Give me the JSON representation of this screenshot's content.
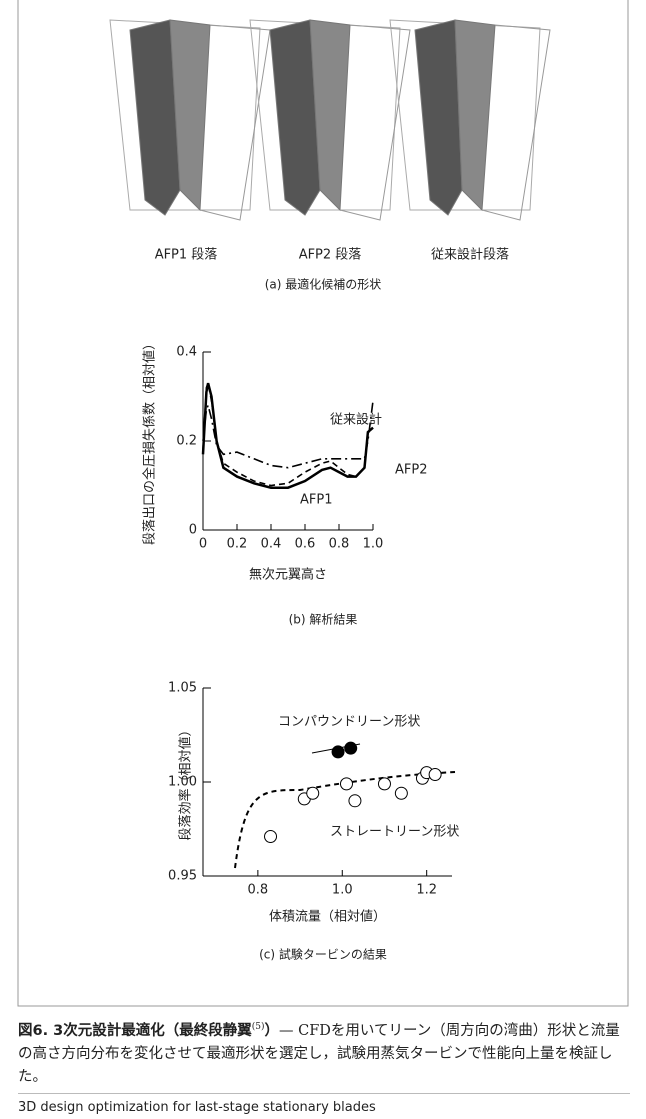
{
  "panel_a": {
    "labels": [
      "AFP1 段落",
      "AFP2 段落",
      "従来設計段落"
    ],
    "caption": "(a) 最適化候補の形状"
  },
  "chart_data": [
    {
      "type": "line",
      "ylabel": "段落出口の全圧損失係数（相対値）",
      "xlabel": "無次元翼高さ",
      "caption": "(b) 解析結果",
      "x": [
        0,
        0.02,
        0.03,
        0.05,
        0.08,
        0.12,
        0.2,
        0.3,
        0.4,
        0.5,
        0.6,
        0.7,
        0.75,
        0.8,
        0.85,
        0.9,
        0.95,
        0.97,
        1.0
      ],
      "series": [
        {
          "name": "AFP1",
          "color": "#000000",
          "line_style": "solid",
          "values": [
            0.17,
            0.31,
            0.33,
            0.3,
            0.2,
            0.14,
            0.12,
            0.105,
            0.095,
            0.095,
            0.11,
            0.135,
            0.14,
            0.13,
            0.12,
            0.12,
            0.14,
            0.22,
            0.23
          ]
        },
        {
          "name": "AFP2",
          "color": "#000000",
          "line_style": "dashed",
          "values": [
            0.18,
            0.32,
            0.33,
            0.29,
            0.2,
            0.15,
            0.13,
            0.11,
            0.1,
            0.105,
            0.13,
            0.15,
            0.155,
            0.14,
            0.125,
            0.12,
            0.14,
            0.22,
            0.23
          ]
        },
        {
          "name": "従来設計",
          "color": "#000000",
          "line_style": "dashdot",
          "values": [
            0.2,
            0.27,
            0.28,
            0.25,
            0.19,
            0.17,
            0.175,
            0.16,
            0.145,
            0.14,
            0.15,
            0.16,
            0.16,
            0.16,
            0.16,
            0.16,
            0.16,
            0.2,
            0.29
          ]
        }
      ],
      "xlim": [
        0,
        1
      ],
      "xticks": [
        0,
        0.2,
        0.4,
        0.6,
        0.8,
        {
          "value": 1,
          "label": "1.0"
        }
      ],
      "ylim": [
        0,
        0.4
      ],
      "yticks": [
        0,
        0.2,
        0.4
      ]
    },
    {
      "type": "scatter",
      "ylabel": "段落効率（相対値）",
      "xlabel": "体積流量（相対値）",
      "caption": "(c) 試験タービンの結果",
      "series": [
        {
          "name": "コンパウンドリーン形状",
          "color": "#000000",
          "marker_fill": "#000000",
          "x": [
            0.99,
            1.02
          ],
          "values": [
            1.016,
            1.018
          ]
        },
        {
          "name": "ストレートリーン形状",
          "color": "#000000",
          "marker_fill": "#ffffff",
          "x": [
            0.83,
            0.91,
            0.93,
            1.01,
            1.03,
            1.1,
            1.14,
            1.19,
            1.2,
            1.22
          ],
          "values": [
            0.971,
            0.991,
            0.994,
            0.999,
            0.99,
            0.999,
            0.994,
            1.002,
            1.005,
            1.004
          ]
        }
      ],
      "xlim": [
        0.67,
        1.26
      ],
      "xticks": [
        0.8,
        {
          "value": 1,
          "label": "1.0"
        },
        1.2
      ],
      "ylim": [
        0.95,
        1.05
      ],
      "yticks": [
        0.95,
        {
          "value": 1,
          "label": "1.00"
        },
        1.05
      ]
    }
  ],
  "figure_caption": {
    "title": "図6. 3次元設計最適化（最終段静翼",
    "ref": "(5)",
    "title_end": "）",
    "body": "— CFDを用いてリーン（周方向の湾曲）形状と流量の高さ方向分布を変化させて最適形状を選定し，試験用蒸気タービンで性能向上量を検証した。",
    "english": "3D design optimization for last-stage stationary blades"
  }
}
